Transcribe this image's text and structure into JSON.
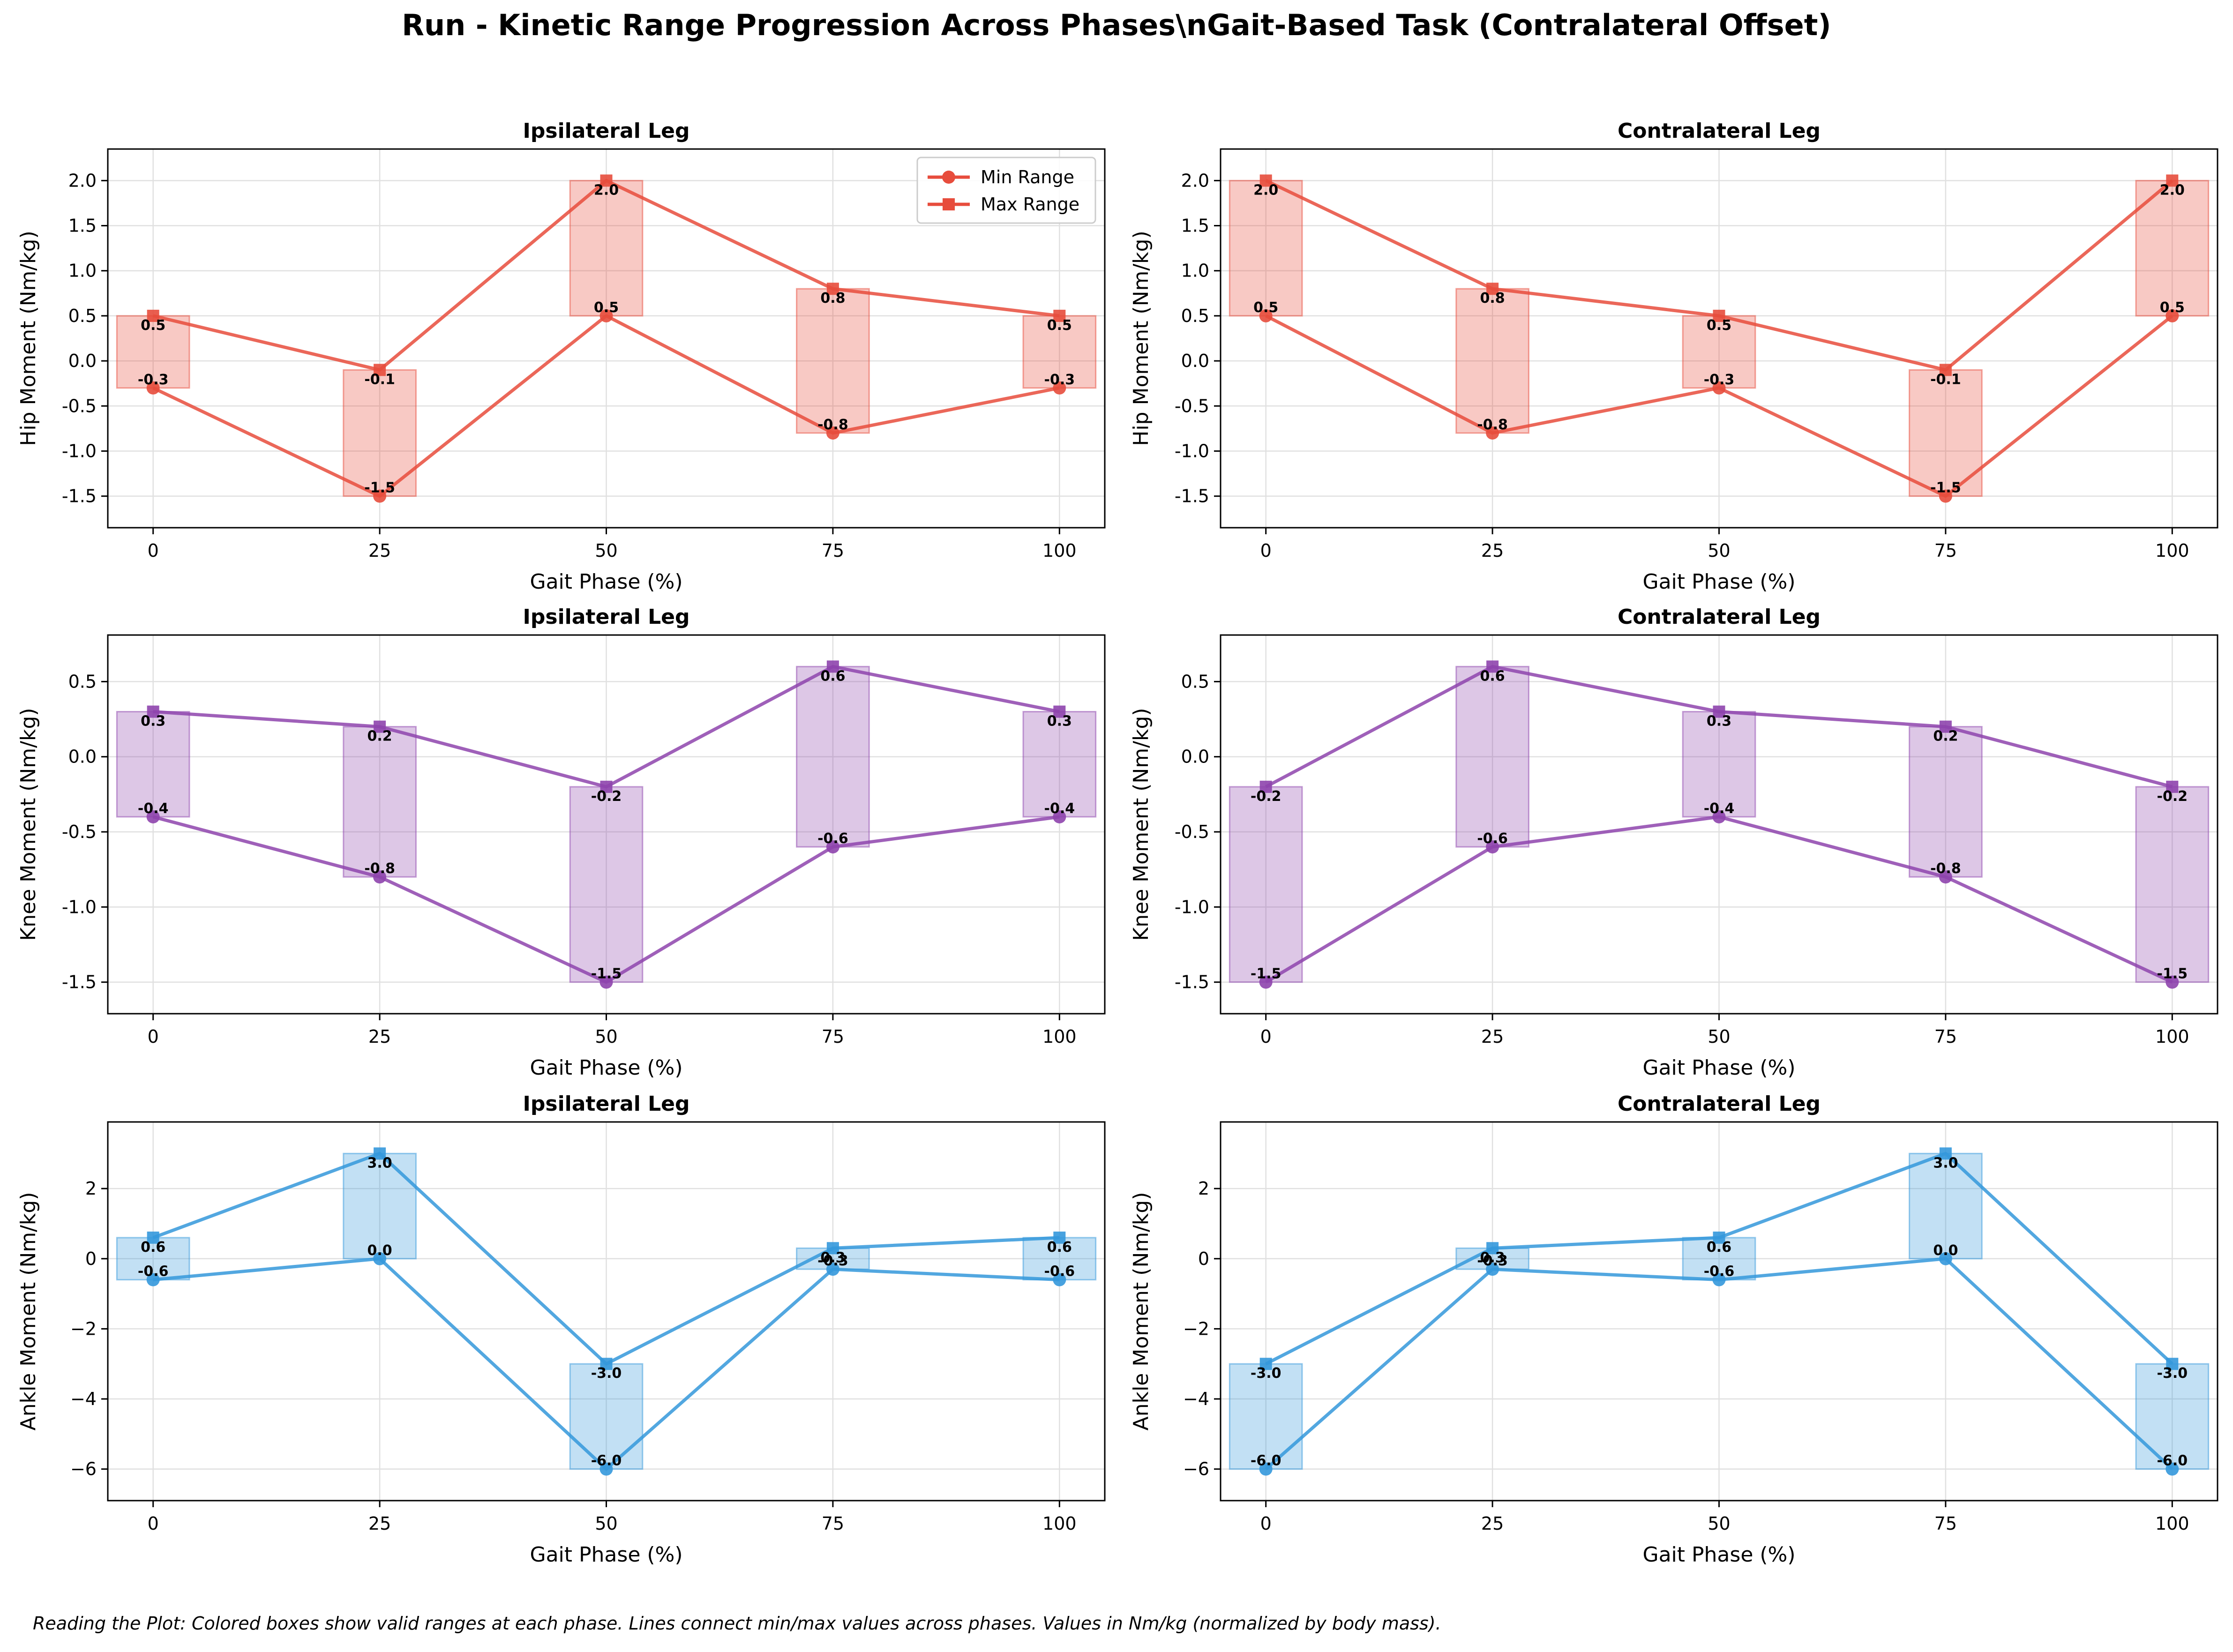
{
  "figure": {
    "title": "Run - Kinetic Range Progression Across Phases\\nGait-Based Task (Contralateral Offset)",
    "footnote": "Reading the Plot: Colored boxes show valid ranges at each phase. Lines connect min/max values across phases. Values in Nm/kg (normalized by body mass)."
  },
  "legend": {
    "min_label": "Min Range",
    "max_label": "Max Range",
    "placement": "upper right (Hip, Ipsilateral Leg panel)"
  },
  "colors": {
    "hip": "#e74c3c",
    "knee": "#8e44ad",
    "ankle": "#3498db",
    "grid": "#e0e0e0",
    "text": "#000000"
  },
  "chart_data": [
    {
      "type": "line",
      "joint": "hip",
      "title": "Ipsilateral Leg",
      "xlabel": "Gait Phase (%)",
      "ylabel": "Hip Moment (Nm/kg)",
      "x": [
        0,
        25,
        50,
        75,
        100
      ],
      "xticks": [
        "0",
        "25",
        "50",
        "75",
        "100"
      ],
      "yticks": [
        "-1.5",
        "-1.0",
        "-0.5",
        "0.0",
        "0.5",
        "1.0",
        "1.5",
        "2.0"
      ],
      "ylim": [
        -1.85,
        2.35
      ],
      "xlim": [
        -5,
        105
      ],
      "grid": true,
      "series": [
        {
          "name": "Min Range",
          "marker": "circle",
          "values": [
            -0.3,
            -1.5,
            0.5,
            -0.8,
            -0.3
          ]
        },
        {
          "name": "Max Range",
          "marker": "square",
          "values": [
            0.5,
            -0.1,
            2.0,
            0.8,
            0.5
          ]
        }
      ],
      "min_labels": [
        "-0.3",
        "-1.5",
        "0.5",
        "-0.8",
        "-0.3"
      ],
      "max_labels": [
        "0.5",
        "-0.1",
        "2.0",
        "0.8",
        "0.5"
      ],
      "legend": true
    },
    {
      "type": "line",
      "joint": "hip",
      "title": "Contralateral Leg",
      "xlabel": "Gait Phase (%)",
      "ylabel": "Hip Moment (Nm/kg)",
      "x": [
        0,
        25,
        50,
        75,
        100
      ],
      "xticks": [
        "0",
        "25",
        "50",
        "75",
        "100"
      ],
      "yticks": [
        "-1.5",
        "-1.0",
        "-0.5",
        "0.0",
        "0.5",
        "1.0",
        "1.5",
        "2.0"
      ],
      "ylim": [
        -1.85,
        2.35
      ],
      "xlim": [
        -5,
        105
      ],
      "grid": true,
      "series": [
        {
          "marker": "circle",
          "values": [
            0.5,
            -0.8,
            -0.3,
            -1.5,
            0.5
          ]
        },
        {
          "marker": "square",
          "values": [
            2.0,
            0.8,
            0.5,
            -0.1,
            2.0
          ]
        }
      ],
      "min_labels": [
        "0.5",
        "-0.8",
        "-0.3",
        "-1.5",
        "0.5"
      ],
      "max_labels": [
        "2.0",
        "0.8",
        "0.5",
        "-0.1",
        "2.0"
      ],
      "legend": false
    },
    {
      "type": "line",
      "joint": "knee",
      "title": "Ipsilateral Leg",
      "xlabel": "Gait Phase (%)",
      "ylabel": "Knee Moment (Nm/kg)",
      "x": [
        0,
        25,
        50,
        75,
        100
      ],
      "xticks": [
        "0",
        "25",
        "50",
        "75",
        "100"
      ],
      "yticks": [
        "-1.5",
        "-1.0",
        "-0.5",
        "0.0",
        "0.5"
      ],
      "ylim": [
        -1.71,
        0.81
      ],
      "xlim": [
        -5,
        105
      ],
      "grid": true,
      "series": [
        {
          "marker": "circle",
          "values": [
            -0.4,
            -0.8,
            -1.5,
            -0.6,
            -0.4
          ]
        },
        {
          "marker": "square",
          "values": [
            0.3,
            0.2,
            -0.2,
            0.6,
            0.3
          ]
        }
      ],
      "min_labels": [
        "-0.4",
        "-0.8",
        "-1.5",
        "-0.6",
        "-0.4"
      ],
      "max_labels": [
        "0.3",
        "0.2",
        "-0.2",
        "0.6",
        "0.3"
      ],
      "legend": false
    },
    {
      "type": "line",
      "joint": "knee",
      "title": "Contralateral Leg",
      "xlabel": "Gait Phase (%)",
      "ylabel": "Knee Moment (Nm/kg)",
      "x": [
        0,
        25,
        50,
        75,
        100
      ],
      "xticks": [
        "0",
        "25",
        "50",
        "75",
        "100"
      ],
      "yticks": [
        "-1.5",
        "-1.0",
        "-0.5",
        "0.0",
        "0.5"
      ],
      "ylim": [
        -1.71,
        0.81
      ],
      "xlim": [
        -5,
        105
      ],
      "grid": true,
      "series": [
        {
          "marker": "circle",
          "values": [
            -1.5,
            -0.6,
            -0.4,
            -0.8,
            -1.5
          ]
        },
        {
          "marker": "square",
          "values": [
            -0.2,
            0.6,
            0.3,
            0.2,
            -0.2
          ]
        }
      ],
      "min_labels": [
        "-1.5",
        "-0.6",
        "-0.4",
        "-0.8",
        "-1.5"
      ],
      "max_labels": [
        "-0.2",
        "0.6",
        "0.3",
        "0.2",
        "-0.2"
      ],
      "legend": false
    },
    {
      "type": "line",
      "joint": "ankle",
      "title": "Ipsilateral Leg",
      "xlabel": "Gait Phase (%)",
      "ylabel": "Ankle Moment (Nm/kg)",
      "x": [
        0,
        25,
        50,
        75,
        100
      ],
      "xticks": [
        "0",
        "25",
        "50",
        "75",
        "100"
      ],
      "yticks": [
        "−6",
        "−4",
        "−2",
        "0",
        "2"
      ],
      "ytick_values": [
        -6,
        -4,
        -2,
        0,
        2
      ],
      "ylim": [
        -6.9,
        3.9
      ],
      "xlim": [
        -5,
        105
      ],
      "grid": true,
      "series": [
        {
          "marker": "circle",
          "values": [
            -0.6,
            0.0,
            -6.0,
            -0.3,
            -0.6
          ]
        },
        {
          "marker": "square",
          "values": [
            0.6,
            3.0,
            -3.0,
            0.3,
            0.6
          ]
        }
      ],
      "min_labels": [
        "-0.6",
        "0.0",
        "-6.0",
        "-0.3",
        "-0.6"
      ],
      "max_labels": [
        "0.6",
        "3.0",
        "-3.0",
        "0.3",
        "0.6"
      ],
      "legend": false
    },
    {
      "type": "line",
      "joint": "ankle",
      "title": "Contralateral Leg",
      "xlabel": "Gait Phase (%)",
      "ylabel": "Ankle Moment (Nm/kg)",
      "x": [
        0,
        25,
        50,
        75,
        100
      ],
      "xticks": [
        "0",
        "25",
        "50",
        "75",
        "100"
      ],
      "yticks": [
        "−6",
        "−4",
        "−2",
        "0",
        "2"
      ],
      "ytick_values": [
        -6,
        -4,
        -2,
        0,
        2
      ],
      "ylim": [
        -6.9,
        3.9
      ],
      "xlim": [
        -5,
        105
      ],
      "grid": true,
      "series": [
        {
          "marker": "circle",
          "values": [
            -6.0,
            -0.3,
            -0.6,
            0.0,
            -6.0
          ]
        },
        {
          "marker": "square",
          "values": [
            -3.0,
            0.3,
            0.6,
            3.0,
            -3.0
          ]
        }
      ],
      "min_labels": [
        "-6.0",
        "-0.3",
        "-0.6",
        "0.0",
        "-6.0"
      ],
      "max_labels": [
        "-3.0",
        "0.3",
        "0.6",
        "3.0",
        "-3.0"
      ],
      "legend": false
    }
  ]
}
